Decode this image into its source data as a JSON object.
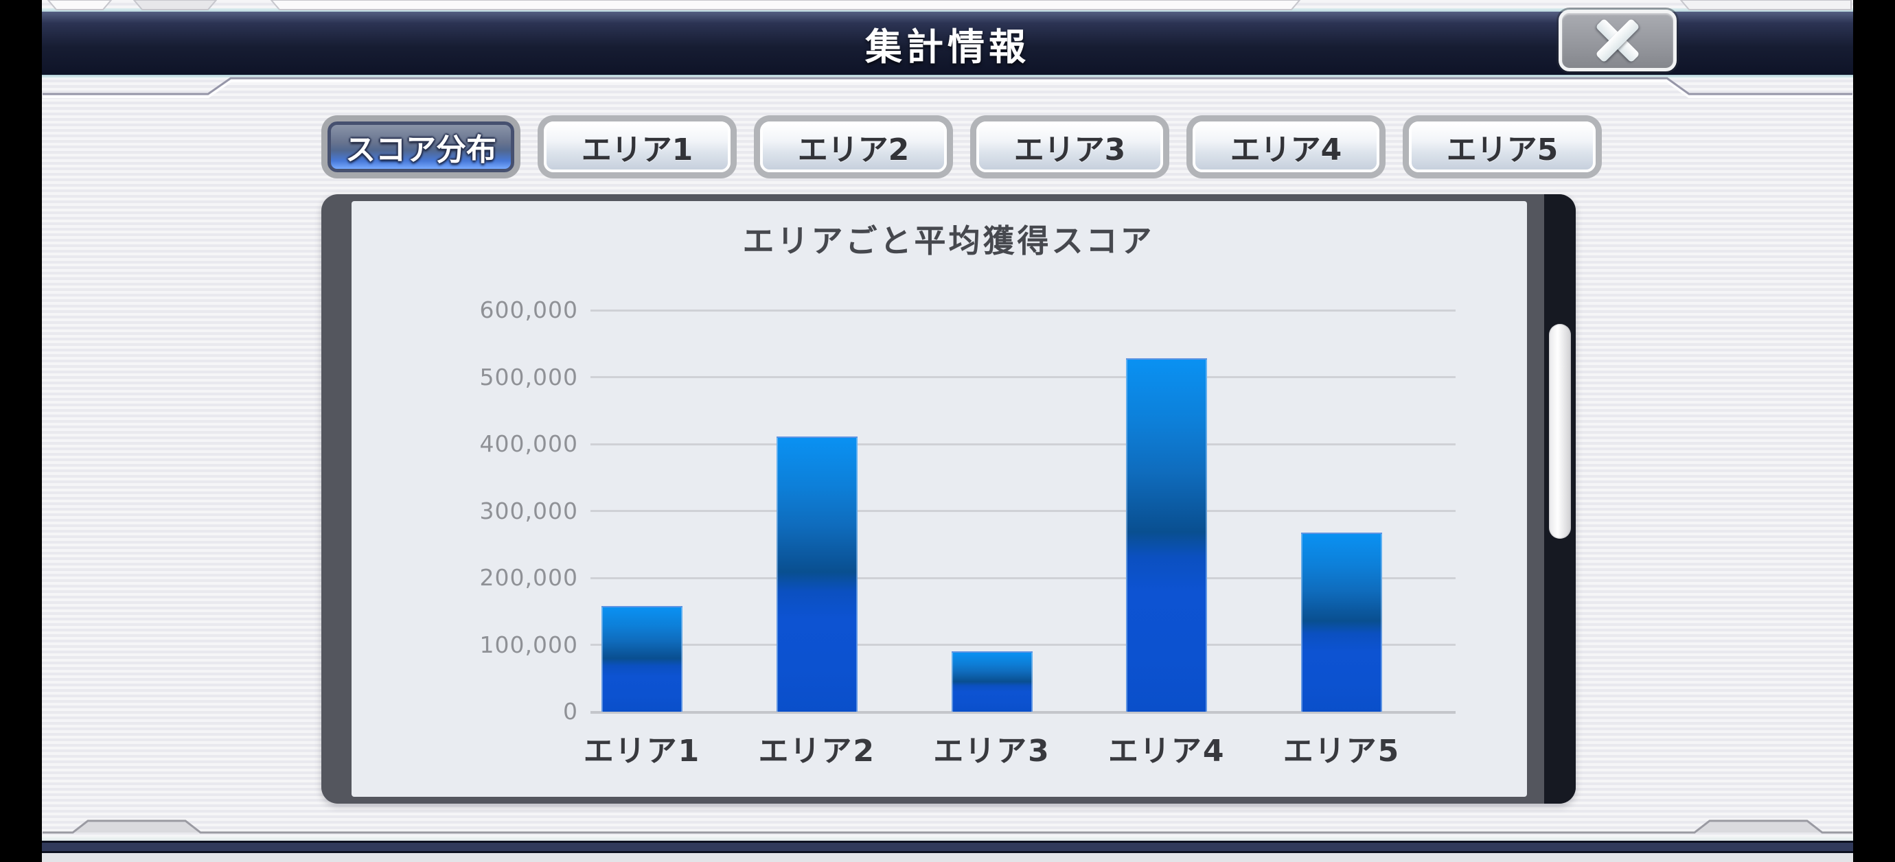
{
  "window": {
    "title": "集計情報",
    "close_label": "✕"
  },
  "tabs": [
    {
      "label": "スコア分布",
      "selected": true
    },
    {
      "label": "エリア1",
      "selected": false
    },
    {
      "label": "エリア2",
      "selected": false
    },
    {
      "label": "エリア3",
      "selected": false
    },
    {
      "label": "エリア4",
      "selected": false
    },
    {
      "label": "エリア5",
      "selected": false
    }
  ],
  "chart_data": {
    "type": "bar",
    "title": "エリアごと平均獲得スコア",
    "categories": [
      "エリア1",
      "エリア2",
      "エリア3",
      "エリア4",
      "エリア5"
    ],
    "values": [
      158000,
      411000,
      90000,
      528000,
      268000
    ],
    "xlabel": "",
    "ylabel": "",
    "ylim": [
      0,
      600000
    ],
    "ytick_step": 100000,
    "ytick_labels": [
      "0",
      "100,000",
      "200,000",
      "300,000",
      "400,000",
      "500,000",
      "600,000"
    ],
    "grid": true,
    "legend": "none",
    "bar_color_top": "#0a91f2",
    "bar_color_mid": "#094f90",
    "bar_color_bottom": "#0c52d0"
  },
  "colors": {
    "header_navy": "#171d33",
    "selected_tab_blue": "#4879d8",
    "panel_frame": "#54565e",
    "panel_interior": "#e9ecf1",
    "scroll_track": "#161922",
    "scroll_thumb": "#ffffff",
    "gridline": "#cfd1d6",
    "accent_line": "#9a9aa2"
  }
}
